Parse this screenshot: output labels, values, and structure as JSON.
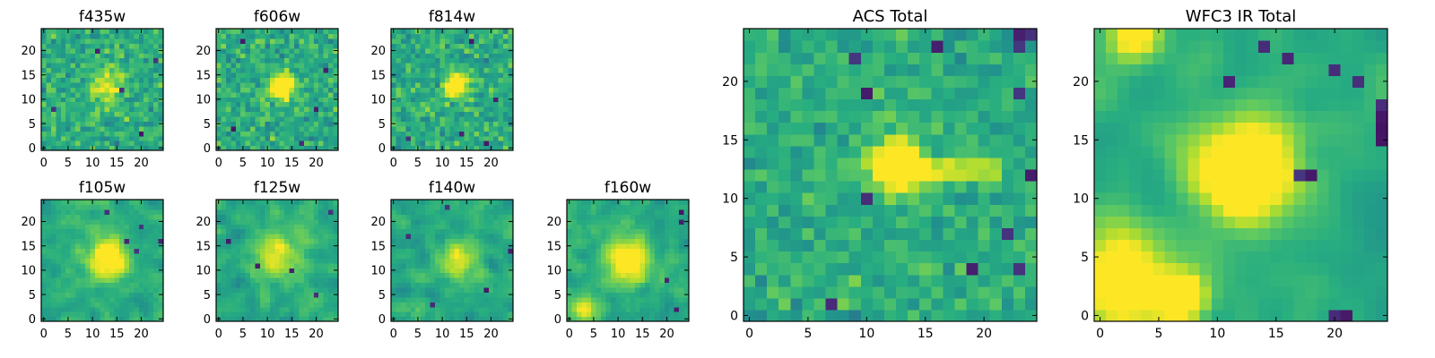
{
  "chart_data": [
    {
      "type": "heatmap",
      "title": "f435w",
      "x_ticks": [
        "0",
        "5",
        "10",
        "15",
        "20"
      ],
      "y_ticks": [
        "0",
        "5",
        "10",
        "15",
        "20"
      ],
      "xlim": [
        0,
        25
      ],
      "ylim": [
        0,
        25
      ],
      "grid_size": [
        25,
        25
      ],
      "seed": 11,
      "noise_amp": 0.9,
      "smooth": 0,
      "sources": [
        {
          "x": 13,
          "y": 13,
          "amp": 0.35,
          "sigma": 2.5
        }
      ],
      "dark_pixels": [
        [
          11,
          20
        ],
        [
          23,
          18
        ],
        [
          2,
          8
        ],
        [
          20,
          3
        ],
        [
          16,
          12
        ]
      ]
    },
    {
      "type": "heatmap",
      "title": "f606w",
      "x_ticks": [
        "0",
        "5",
        "10",
        "15",
        "20"
      ],
      "y_ticks": [
        "0",
        "5",
        "10",
        "15",
        "20"
      ],
      "xlim": [
        0,
        25
      ],
      "ylim": [
        0,
        25
      ],
      "grid_size": [
        25,
        25
      ],
      "seed": 23,
      "noise_amp": 0.9,
      "smooth": 0,
      "sources": [
        {
          "x": 13,
          "y": 12.5,
          "amp": 0.7,
          "sigma": 1.8
        }
      ],
      "dark_pixels": [
        [
          5,
          22
        ],
        [
          20,
          8
        ],
        [
          17,
          1
        ],
        [
          3,
          4
        ],
        [
          22,
          16
        ]
      ]
    },
    {
      "type": "heatmap",
      "title": "f814w",
      "x_ticks": [
        "0",
        "5",
        "10",
        "15",
        "20"
      ],
      "y_ticks": [
        "0",
        "5",
        "10",
        "15",
        "20"
      ],
      "xlim": [
        0,
        25
      ],
      "ylim": [
        0,
        25
      ],
      "grid_size": [
        25,
        25
      ],
      "seed": 37,
      "noise_amp": 0.9,
      "smooth": 0,
      "sources": [
        {
          "x": 13,
          "y": 13,
          "amp": 0.65,
          "sigma": 1.7
        }
      ],
      "dark_pixels": [
        [
          16,
          22
        ],
        [
          3,
          2
        ],
        [
          19,
          1
        ],
        [
          14,
          3
        ],
        [
          21,
          10
        ]
      ]
    },
    {
      "type": "heatmap",
      "title": "f105w",
      "x_ticks": [
        "0",
        "5",
        "10",
        "15",
        "20"
      ],
      "y_ticks": [
        "0",
        "5",
        "10",
        "15",
        "20"
      ],
      "xlim": [
        0,
        25
      ],
      "ylim": [
        0,
        25
      ],
      "grid_size": [
        25,
        25
      ],
      "seed": 41,
      "noise_amp": 0.8,
      "smooth": 1,
      "sources": [
        {
          "x": 13,
          "y": 12.5,
          "amp": 0.55,
          "sigma": 2.8
        }
      ],
      "dark_pixels": [
        [
          17,
          16
        ],
        [
          19,
          14
        ],
        [
          24,
          16
        ],
        [
          13,
          22
        ],
        [
          20,
          19
        ]
      ]
    },
    {
      "type": "heatmap",
      "title": "f125w",
      "x_ticks": [
        "0",
        "5",
        "10",
        "15",
        "20"
      ],
      "y_ticks": [
        "0",
        "5",
        "10",
        "15",
        "20"
      ],
      "xlim": [
        0,
        25
      ],
      "ylim": [
        0,
        25
      ],
      "grid_size": [
        25,
        25
      ],
      "seed": 53,
      "noise_amp": 0.85,
      "smooth": 1,
      "sources": [
        {
          "x": 12,
          "y": 13,
          "amp": 0.4,
          "sigma": 3
        }
      ],
      "dark_pixels": [
        [
          8,
          11
        ],
        [
          15,
          10
        ],
        [
          2,
          16
        ],
        [
          23,
          22
        ],
        [
          20,
          5
        ]
      ]
    },
    {
      "type": "heatmap",
      "title": "f140w",
      "x_ticks": [
        "0",
        "5",
        "10",
        "15",
        "20"
      ],
      "y_ticks": [
        "0",
        "5",
        "10",
        "15",
        "20"
      ],
      "xlim": [
        0,
        25
      ],
      "ylim": [
        0,
        25
      ],
      "grid_size": [
        25,
        25
      ],
      "seed": 67,
      "noise_amp": 0.85,
      "smooth": 1,
      "sources": [
        {
          "x": 13,
          "y": 12.5,
          "amp": 0.4,
          "sigma": 2.5
        }
      ],
      "dark_pixels": [
        [
          24,
          14
        ],
        [
          11,
          23
        ],
        [
          3,
          17
        ],
        [
          19,
          6
        ],
        [
          8,
          3
        ]
      ]
    },
    {
      "type": "heatmap",
      "title": "f160w",
      "x_ticks": [
        "0",
        "5",
        "10",
        "15",
        "20"
      ],
      "y_ticks": [
        "0",
        "5",
        "10",
        "15",
        "20"
      ],
      "xlim": [
        0,
        25
      ],
      "ylim": [
        0,
        25
      ],
      "grid_size": [
        25,
        25
      ],
      "seed": 79,
      "noise_amp": 0.8,
      "smooth": 1,
      "sources": [
        {
          "x": 12,
          "y": 12,
          "amp": 0.55,
          "sigma": 3
        },
        {
          "x": 3,
          "y": 2,
          "amp": 0.35,
          "sigma": 2
        }
      ],
      "dark_pixels": [
        [
          23,
          22
        ],
        [
          23,
          20
        ],
        [
          20,
          8
        ],
        [
          22,
          2
        ]
      ]
    },
    {
      "type": "heatmap",
      "title": "ACS Total",
      "x_ticks": [
        "0",
        "5",
        "10",
        "15",
        "20"
      ],
      "y_ticks": [
        "0",
        "5",
        "10",
        "15",
        "20"
      ],
      "xlim": [
        0,
        25
      ],
      "ylim": [
        0,
        25
      ],
      "grid_size": [
        25,
        25
      ],
      "seed": 97,
      "noise_amp": 0.7,
      "smooth": 0,
      "sources": [
        {
          "x": 12.5,
          "y": 12.8,
          "amp": 0.95,
          "sigma": 1.4
        }
      ],
      "ridges": [
        {
          "y": 12.5,
          "x0": 14,
          "x1": 21,
          "amp": 0.35
        }
      ],
      "dark_pixels": [
        [
          16,
          23
        ],
        [
          9,
          22
        ],
        [
          10,
          19
        ],
        [
          23,
          19
        ],
        [
          22,
          7
        ],
        [
          23,
          4
        ],
        [
          19,
          4
        ],
        [
          24,
          12
        ],
        [
          7,
          1
        ],
        [
          10,
          10
        ],
        [
          23,
          24
        ],
        [
          23,
          23
        ],
        [
          24,
          24
        ]
      ]
    },
    {
      "type": "heatmap",
      "title": "WFC3 IR Total",
      "x_ticks": [
        "0",
        "5",
        "10",
        "15",
        "20"
      ],
      "y_ticks": [
        "0",
        "5",
        "10",
        "15",
        "20"
      ],
      "xlim": [
        0,
        25
      ],
      "ylim": [
        0,
        25
      ],
      "grid_size": [
        25,
        25
      ],
      "seed": 131,
      "noise_amp": 0.45,
      "smooth": 2,
      "sources": [
        {
          "x": 12.5,
          "y": 12.5,
          "amp": 0.75,
          "sigma": 3
        },
        {
          "x": 7,
          "y": 1.5,
          "amp": 0.6,
          "sigma": 1.5
        },
        {
          "x": 2,
          "y": 3,
          "amp": 0.55,
          "sigma": 3
        },
        {
          "x": 3,
          "y": 24,
          "amp": 0.5,
          "sigma": 1.5
        }
      ],
      "dark_pixels": [
        [
          24,
          18
        ],
        [
          24,
          17
        ],
        [
          24,
          16
        ],
        [
          24,
          15
        ],
        [
          14,
          23
        ],
        [
          16,
          22
        ],
        [
          11,
          20
        ],
        [
          22,
          20
        ],
        [
          18,
          12
        ],
        [
          17,
          12
        ],
        [
          21,
          0
        ],
        [
          20,
          0
        ],
        [
          20,
          21
        ]
      ]
    }
  ]
}
